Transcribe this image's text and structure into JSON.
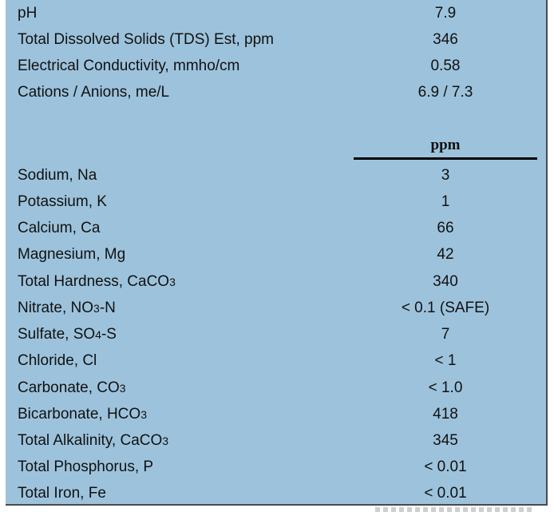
{
  "summary": [
    {
      "label": "pH",
      "value": "7.9"
    },
    {
      "label": "Total Dissolved Solids (TDS) Est, ppm",
      "value": "346"
    },
    {
      "label": "Electrical Conductivity, mmho/cm",
      "value": "0.58"
    },
    {
      "label": "Cations / Anions, me/L",
      "value": "6.9 /  7.3"
    }
  ],
  "column_header": "ppm",
  "analytes": [
    {
      "label": "Sodium, Na",
      "value": "3"
    },
    {
      "label": "Potassium, K",
      "value": "1"
    },
    {
      "label": "Calcium, Ca",
      "value": "66"
    },
    {
      "label": "Magnesium, Mg",
      "value": "42"
    },
    {
      "label_pre": "Total Hardness, CaCO",
      "label_sub": "3",
      "label_post": "",
      "value": "340"
    },
    {
      "label_pre": "Nitrate, NO",
      "label_sub": "3",
      "label_post": "-N",
      "value": "< 0.1 (SAFE)"
    },
    {
      "label_pre": "Sulfate, SO",
      "label_sub": "4",
      "label_post": "-S",
      "value": "7"
    },
    {
      "label": "Chloride, Cl",
      "value": "< 1"
    },
    {
      "label_pre": "Carbonate, CO",
      "label_sub": "3",
      "label_post": "",
      "value": "< 1.0"
    },
    {
      "label_pre": "Bicarbonate, HCO",
      "label_sub": "3",
      "label_post": "",
      "value": "418"
    },
    {
      "label_pre": "Total Alkalinity, CaCO",
      "label_sub": "3",
      "label_post": "",
      "value": "345"
    },
    {
      "label": "Total Phosphorus, P",
      "value": "< 0.01"
    },
    {
      "label": "Total Iron, Fe",
      "value": "< 0.01"
    }
  ]
}
